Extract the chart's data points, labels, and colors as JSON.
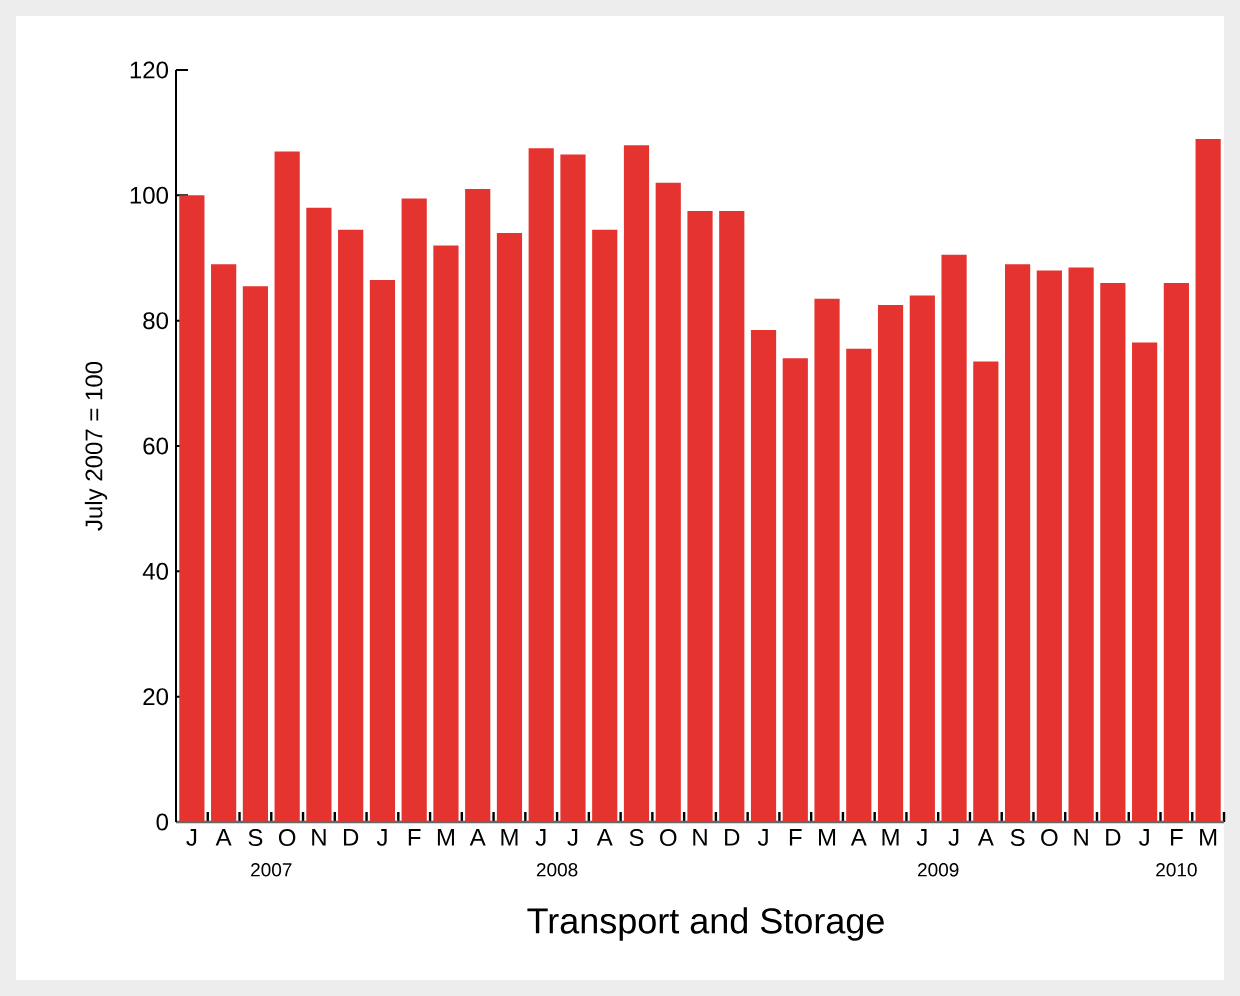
{
  "chart_data": {
    "type": "bar",
    "title": "Transport and Storage",
    "ylabel": "July 2007 = 100",
    "categories": [
      "J",
      "A",
      "S",
      "O",
      "N",
      "D",
      "J",
      "F",
      "M",
      "A",
      "M",
      "J",
      "J",
      "A",
      "S",
      "O",
      "N",
      "D",
      "J",
      "F",
      "M",
      "A",
      "M",
      "J",
      "J",
      "A",
      "S",
      "O",
      "N",
      "D",
      "J",
      "F",
      "M"
    ],
    "values": [
      100,
      89,
      85.5,
      107,
      98,
      94.5,
      86.5,
      99.5,
      92,
      101,
      94,
      107.5,
      106.5,
      94.5,
      108,
      102,
      97.5,
      97.5,
      78.5,
      74,
      83.5,
      75.5,
      82.5,
      84,
      90.5,
      73.5,
      89,
      88,
      88.5,
      86,
      76.5,
      86,
      109
    ],
    "color": "#e5332f",
    "ylim": [
      0,
      120
    ],
    "yticks": [
      0,
      20,
      40,
      60,
      80,
      100,
      120
    ],
    "grid": false,
    "annotations": [
      "2007",
      "2008",
      "2009",
      "2010"
    ]
  }
}
